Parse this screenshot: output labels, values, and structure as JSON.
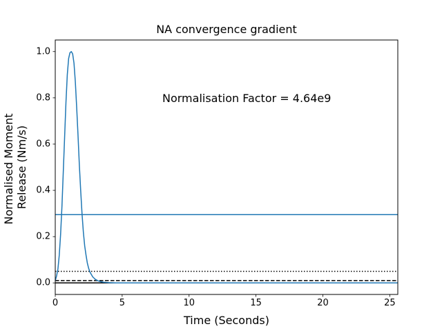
{
  "chart_data": {
    "type": "line",
    "title": "NA convergence gradient",
    "xlabel": "Time (Seconds)",
    "ylabel_lines": [
      "Normalised Moment",
      "Release (Nm/s)"
    ],
    "xlim": [
      0,
      25.6
    ],
    "ylim": [
      -0.05,
      1.05
    ],
    "xticks": [
      0,
      5,
      10,
      15,
      20,
      25
    ],
    "yticks": [
      0.0,
      0.2,
      0.4,
      0.6,
      0.8,
      1.0
    ],
    "xtick_labels": [
      "0",
      "5",
      "10",
      "15",
      "20",
      "25"
    ],
    "ytick_labels": [
      "0.0",
      "0.2",
      "0.4",
      "0.6",
      "0.8",
      "1.0"
    ],
    "grid": false,
    "annotation": {
      "text": "Normalisation Factor = 4.64e9",
      "x": 8.0,
      "y": 0.8
    },
    "curve": {
      "color": "#1f77b4",
      "x": [
        0,
        0.1,
        0.2,
        0.3,
        0.4,
        0.5,
        0.6,
        0.7,
        0.8,
        0.9,
        1.0,
        1.1,
        1.2,
        1.3,
        1.4,
        1.5,
        1.6,
        1.7,
        1.8,
        1.9,
        2.0,
        2.1,
        2.2,
        2.3,
        2.4,
        2.5,
        2.6,
        2.8,
        3.0,
        3.2,
        3.4,
        3.6,
        3.8,
        4.0,
        4.5,
        5,
        6,
        8,
        10,
        15,
        20,
        25.6
      ],
      "y": [
        0.01,
        0.03,
        0.06,
        0.12,
        0.21,
        0.33,
        0.48,
        0.63,
        0.78,
        0.9,
        0.97,
        0.995,
        1.0,
        0.99,
        0.95,
        0.87,
        0.76,
        0.64,
        0.51,
        0.4,
        0.3,
        0.22,
        0.16,
        0.12,
        0.085,
        0.062,
        0.046,
        0.026,
        0.015,
        0.009,
        0.005,
        0.003,
        0.002,
        0.001,
        0.0,
        0.0,
        0.0,
        0.0,
        0.0,
        0.0,
        0.0,
        0.0
      ]
    },
    "hlines": [
      {
        "y": 0.295,
        "style": "solid",
        "color": "#1f77b4"
      },
      {
        "y": 0.05,
        "style": "dotted",
        "color": "#000000"
      },
      {
        "y": 0.01,
        "style": "dashed",
        "color": "#000000"
      },
      {
        "y": 0.0,
        "style": "solid",
        "color": "#000000"
      }
    ]
  }
}
